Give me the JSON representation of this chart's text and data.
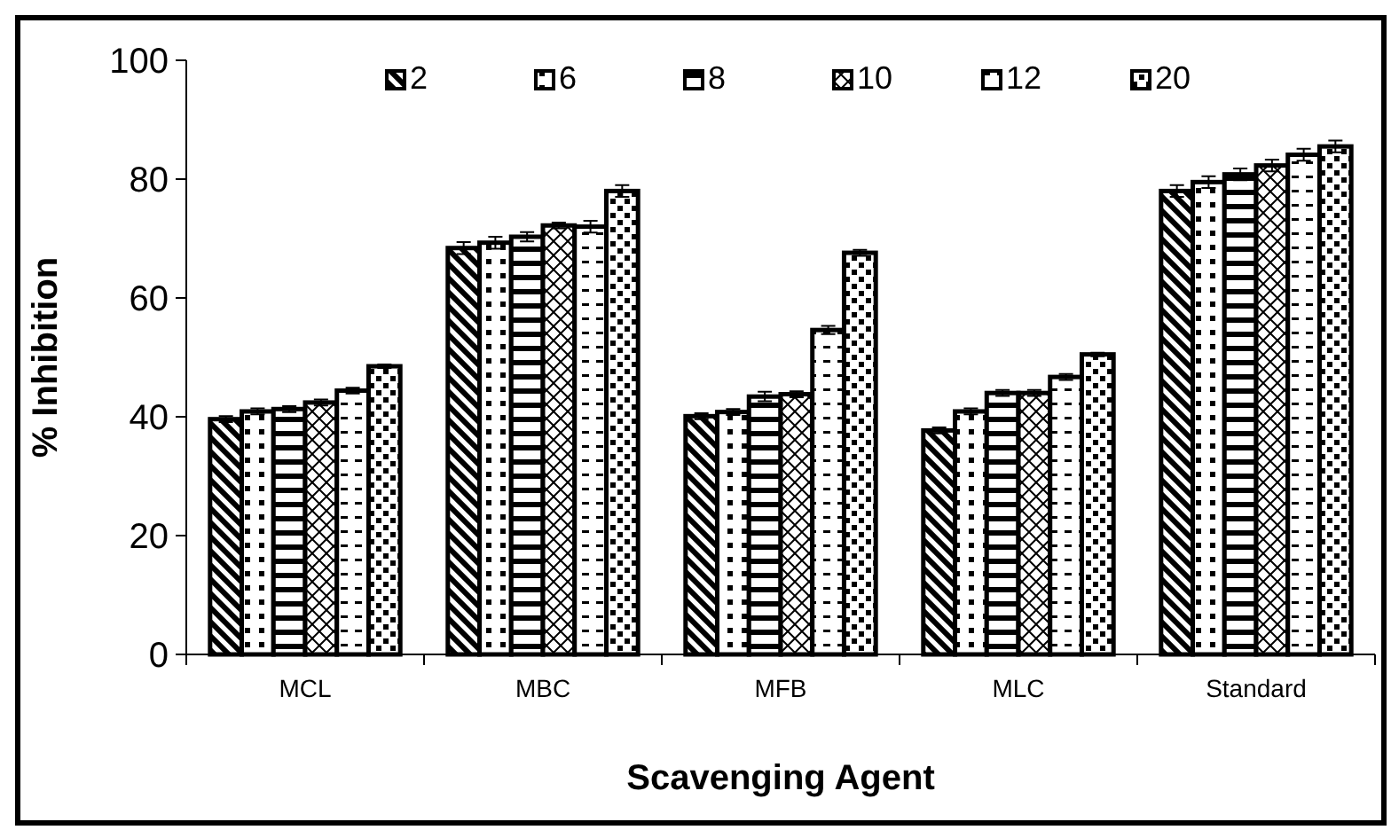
{
  "chart_data": {
    "type": "bar",
    "xlabel": "Scavenging Agent",
    "ylabel": "% Inhibition",
    "categories": [
      "MCL",
      "MBC",
      "MFB",
      "MLC",
      "Standard"
    ],
    "ylim": [
      0,
      100
    ],
    "yticks": [
      0,
      20,
      40,
      60,
      80,
      100
    ],
    "grid": false,
    "legend": "top",
    "series": [
      {
        "name": "2",
        "color": "#000000",
        "values": [
          39.6,
          68.4,
          40.1,
          37.7,
          78
        ],
        "errors": [
          0.5,
          1,
          0.5,
          0.5,
          1
        ]
      },
      {
        "name": "6",
        "color": "#000000",
        "values": [
          40.9,
          69.3,
          40.8,
          40.9,
          79.5
        ],
        "errors": [
          0.5,
          1,
          0.5,
          0.5,
          1
        ]
      },
      {
        "name": "8",
        "color": "#000000",
        "values": [
          41.3,
          70.3,
          43.4,
          44,
          80.8
        ],
        "errors": [
          0.5,
          0.8,
          0.8,
          0.5,
          1
        ]
      },
      {
        "name": "10",
        "color": "#000000",
        "values": [
          42.4,
          72.2,
          43.8,
          44,
          82.3
        ],
        "errors": [
          0.5,
          0.5,
          0.5,
          0.5,
          1
        ]
      },
      {
        "name": "12",
        "color": "#000000",
        "values": [
          44.4,
          72,
          54.6,
          46.7,
          84.1
        ],
        "errors": [
          0.5,
          1,
          0.7,
          0.5,
          1
        ]
      },
      {
        "name": "20",
        "color": "#000000",
        "values": [
          48.5,
          78,
          67.6,
          50.5,
          85.5
        ],
        "errors": [
          0.3,
          1,
          0.5,
          0.3,
          1
        ]
      }
    ]
  }
}
